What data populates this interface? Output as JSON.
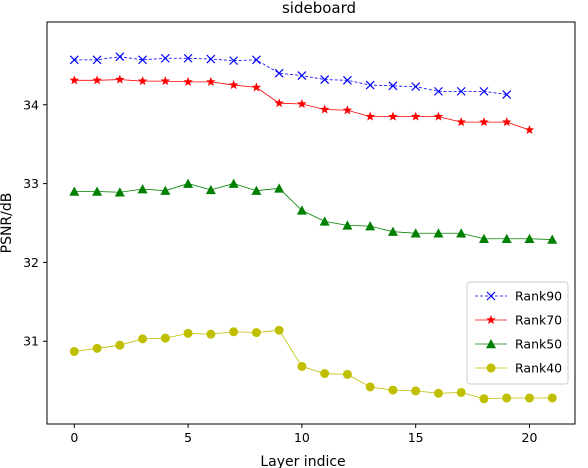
{
  "chart_data": {
    "type": "line",
    "title": "sideboard",
    "xlabel": "Layer indice",
    "ylabel": "PSNR/dB",
    "xlim": [
      -1.2,
      22.0
    ],
    "ylim": [
      29.95,
      35.05
    ],
    "xticks": [
      0,
      5,
      10,
      15,
      20
    ],
    "yticks": [
      31,
      32,
      33,
      34
    ],
    "grid": false,
    "legend_position": "center-right",
    "series": [
      {
        "name": "Rank90",
        "color": "#0000ff",
        "marker": "x",
        "line_style": "dashed",
        "x": [
          0,
          1,
          2,
          3,
          4,
          5,
          6,
          7,
          8,
          9,
          10,
          11,
          12,
          13,
          14,
          15,
          16,
          17,
          18,
          19
        ],
        "y": [
          34.57,
          34.57,
          34.61,
          34.57,
          34.59,
          34.59,
          34.58,
          34.56,
          34.57,
          34.4,
          34.37,
          34.32,
          34.31,
          34.25,
          34.24,
          34.23,
          34.17,
          34.17,
          34.17,
          34.13
        ]
      },
      {
        "name": "Rank70",
        "color": "#ff0000",
        "marker": "star",
        "line_style": "solid",
        "x": [
          0,
          1,
          2,
          3,
          4,
          5,
          6,
          7,
          8,
          9,
          10,
          11,
          12,
          13,
          14,
          15,
          16,
          17,
          18,
          19,
          20
        ],
        "y": [
          34.31,
          34.31,
          34.32,
          34.3,
          34.3,
          34.29,
          34.29,
          34.25,
          34.22,
          34.02,
          34.01,
          33.94,
          33.93,
          33.85,
          33.85,
          33.85,
          33.85,
          33.78,
          33.78,
          33.78,
          33.68
        ]
      },
      {
        "name": "Rank50",
        "color": "#008000",
        "marker": "triangle",
        "line_style": "solid",
        "x": [
          0,
          1,
          2,
          3,
          4,
          5,
          6,
          7,
          8,
          9,
          10,
          11,
          12,
          13,
          14,
          15,
          16,
          17,
          18,
          19,
          20,
          21
        ],
        "y": [
          32.9,
          32.9,
          32.89,
          32.93,
          32.91,
          33.0,
          32.92,
          33.0,
          32.91,
          32.94,
          32.66,
          32.52,
          32.47,
          32.46,
          32.39,
          32.37,
          32.37,
          32.37,
          32.3,
          32.3,
          32.3,
          32.29
        ]
      },
      {
        "name": "Rank40",
        "color": "#bfbf00",
        "marker": "circle",
        "line_style": "solid",
        "x": [
          0,
          1,
          2,
          3,
          4,
          5,
          6,
          7,
          8,
          9,
          10,
          11,
          12,
          13,
          14,
          15,
          16,
          17,
          18,
          19,
          20,
          21
        ],
        "y": [
          30.87,
          30.91,
          30.95,
          31.03,
          31.04,
          31.1,
          31.09,
          31.12,
          31.11,
          31.14,
          30.68,
          30.59,
          30.58,
          30.42,
          30.38,
          30.37,
          30.34,
          30.35,
          30.27,
          30.28,
          30.28,
          30.28
        ]
      }
    ]
  }
}
